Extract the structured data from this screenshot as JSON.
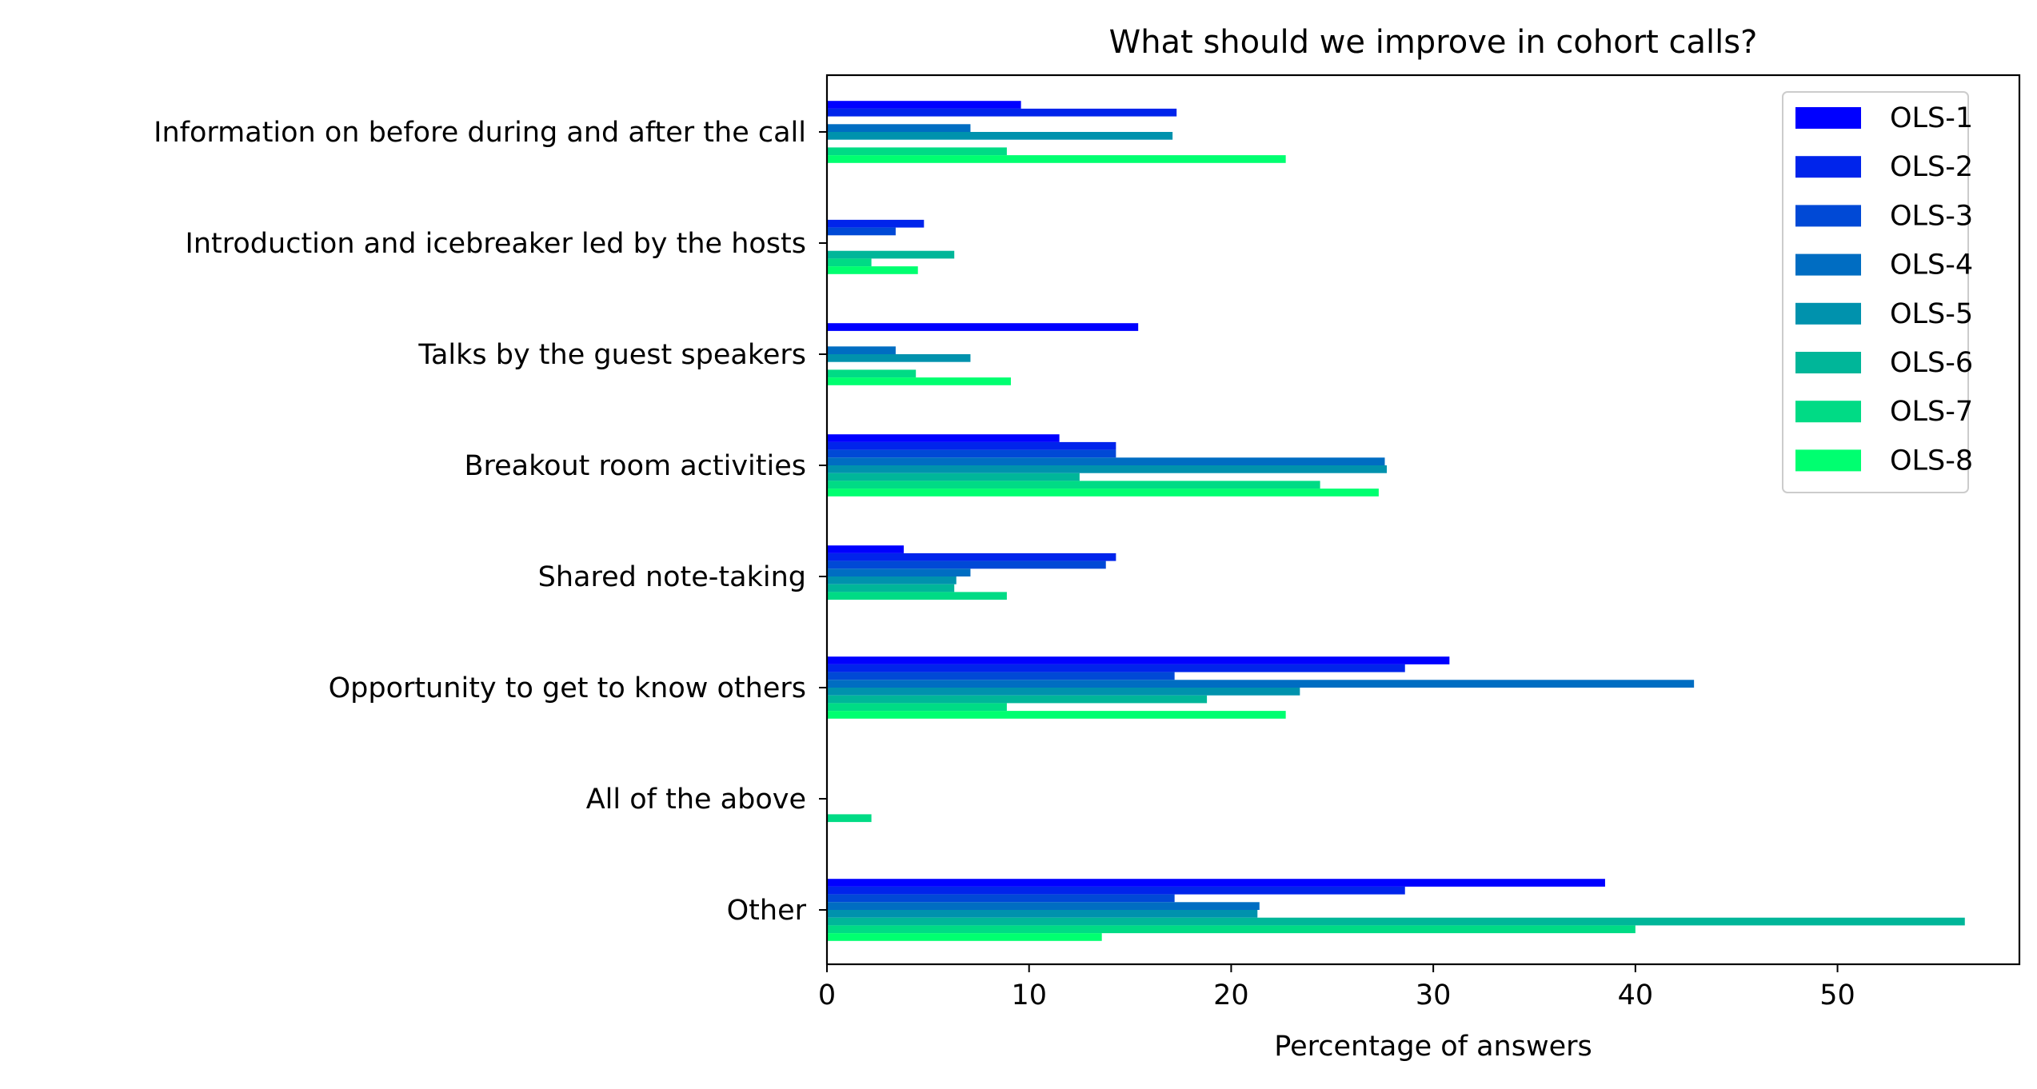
{
  "chart_data": {
    "type": "bar",
    "orientation": "horizontal",
    "title": "What should we improve in cohort calls?",
    "xlabel": "Percentage of answers",
    "ylabel": "",
    "xlim": [
      0,
      59
    ],
    "xticks": [
      0,
      10,
      20,
      30,
      40,
      50
    ],
    "grid": false,
    "legend_position": "top-right",
    "categories": [
      "Information on before during and after the call",
      "Introduction and icebreaker led by the hosts",
      "Talks by the guest speakers",
      "Breakout room activities",
      "Shared note-taking",
      "Opportunity to get to know others",
      "All of the above",
      "Other"
    ],
    "series": [
      {
        "name": "OLS-1",
        "color": "#0000ff",
        "values": [
          9.6,
          0,
          15.4,
          11.5,
          3.8,
          30.8,
          0,
          38.5
        ]
      },
      {
        "name": "OLS-2",
        "color": "#0024eb",
        "values": [
          17.3,
          4.8,
          0,
          14.3,
          14.3,
          28.6,
          0,
          28.6
        ]
      },
      {
        "name": "OLS-3",
        "color": "#0049d6",
        "values": [
          0,
          3.4,
          0,
          14.3,
          13.8,
          17.2,
          0,
          17.2
        ]
      },
      {
        "name": "OLS-4",
        "color": "#006dc2",
        "values": [
          7.1,
          0,
          3.4,
          27.6,
          7.1,
          42.9,
          0,
          21.4
        ]
      },
      {
        "name": "OLS-5",
        "color": "#0092ad",
        "values": [
          17.1,
          0,
          7.1,
          27.7,
          6.4,
          23.4,
          0,
          21.3
        ]
      },
      {
        "name": "OLS-6",
        "color": "#00b699",
        "values": [
          0,
          6.3,
          0,
          12.5,
          6.3,
          18.8,
          0,
          56.3
        ]
      },
      {
        "name": "OLS-7",
        "color": "#00db85",
        "values": [
          8.9,
          2.2,
          4.4,
          24.4,
          8.9,
          8.9,
          2.2,
          40.0
        ]
      },
      {
        "name": "OLS-8",
        "color": "#00ff70",
        "values": [
          22.7,
          4.5,
          9.1,
          27.3,
          0,
          22.7,
          0,
          13.6
        ]
      }
    ]
  }
}
